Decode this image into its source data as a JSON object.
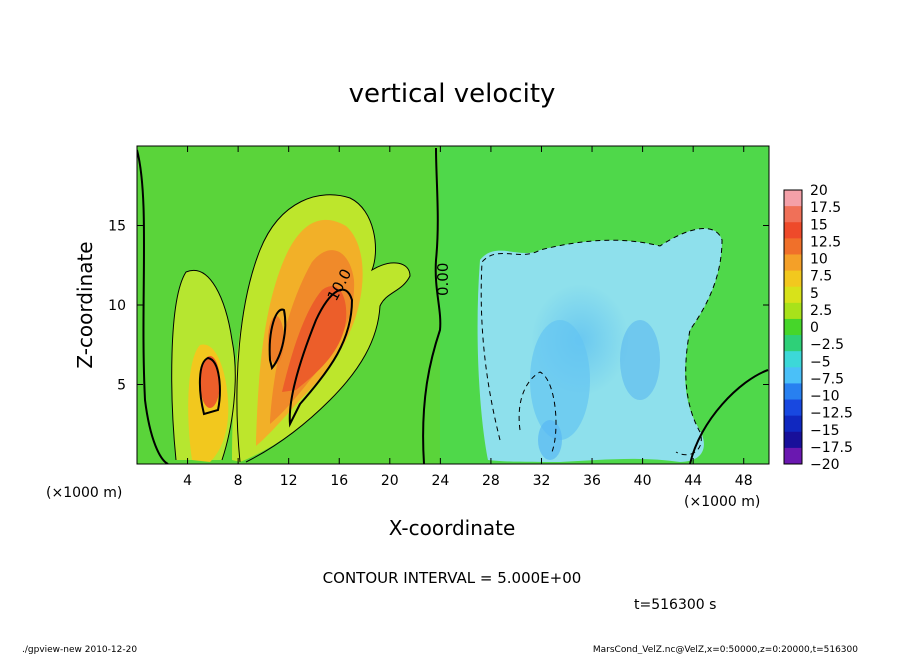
{
  "chart_data": {
    "type": "heatmap",
    "title": "vertical velocity",
    "xlabel": "X-coordinate",
    "ylabel": "Z-coordinate",
    "x_unit_left": "(×1000 m)",
    "x_unit_right": "(×1000 m)",
    "xlim": [
      0,
      50
    ],
    "ylim": [
      0,
      20
    ],
    "xticks": [
      4,
      8,
      12,
      16,
      20,
      24,
      28,
      32,
      36,
      40,
      44,
      48
    ],
    "yticks": [
      5,
      10,
      15
    ],
    "colorbar": {
      "labels": [
        "20",
        "17.5",
        "15",
        "12.5",
        "10",
        "7.5",
        "5",
        "2.5",
        "0",
        "−2.5",
        "−5",
        "−7.5",
        "−10",
        "−12.5",
        "−15",
        "−17.5",
        "−20"
      ],
      "colors": [
        "#f4a0a8",
        "#f07058",
        "#ee4a2a",
        "#f0702a",
        "#f4a028",
        "#f2c81e",
        "#d8e21a",
        "#a8e21a",
        "#46d62a",
        "#2ed078",
        "#3cd8d8",
        "#4ac0f8",
        "#2880f0",
        "#1848e0",
        "#1028c0",
        "#18109a",
        "#6a18b0"
      ]
    },
    "contour_labels": [
      "10.0",
      "0.00"
    ],
    "contour_interval": "CONTOUR INTERVAL = 5.000E+00",
    "time_label": "t=516300 s",
    "footer_left": "./gpview-new  2010-12-20",
    "footer_right": "MarsCond_VelZ.nc@VelZ,x=0:50000,z=0:20000,t=516300"
  }
}
